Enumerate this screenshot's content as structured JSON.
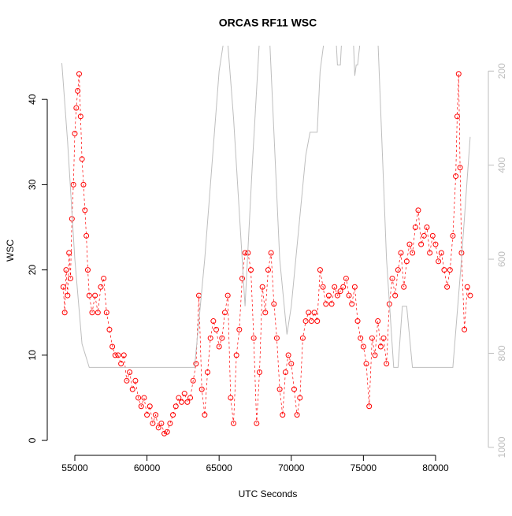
{
  "chart_data": {
    "type": "scatter",
    "title": "ORCAS RF11 WSC",
    "x_label": "UTC Seconds",
    "y_label": "WSC",
    "xlim": [
      53090,
      83660
    ],
    "xticks": [
      55000,
      60000,
      65000,
      70000,
      75000,
      80000
    ],
    "ylim": [
      -1.75,
      46.3
    ],
    "yticks": [
      0,
      10,
      20,
      30,
      40
    ],
    "y2lim": [
      1017,
      146
    ],
    "y2ticks": [
      200,
      400,
      600,
      800,
      1000
    ],
    "series": [
      {
        "color": "#ff0000",
        "x": [
          54200,
          54300,
          54400,
          54500,
          54600,
          54700,
          54800,
          54900,
          55000,
          55100,
          55200,
          55300,
          55400,
          55500,
          55600,
          55700,
          55800,
          55900,
          56000,
          56200,
          56400,
          56600,
          56800,
          57000,
          57200,
          57400,
          57600,
          57800,
          58000,
          58200,
          58400,
          58600,
          58800,
          59000,
          59200,
          59400,
          59600,
          59800,
          60000,
          60200,
          60400,
          60600,
          60800,
          61000,
          61200,
          61400,
          61600,
          61800,
          62000,
          62200,
          62400,
          62600,
          62800,
          63000,
          63200,
          63400,
          63600,
          63800,
          64000,
          64200,
          64400,
          64600,
          64800,
          65000,
          65200,
          65400,
          65600,
          65800,
          66000,
          66200,
          66400,
          66600,
          66800,
          67000,
          67200,
          67400,
          67600,
          67800,
          68000,
          68200,
          68400,
          68600,
          68800,
          69000,
          69200,
          69400,
          69600,
          69800,
          70000,
          70200,
          70400,
          70600,
          70800,
          71000,
          71200,
          71400,
          71600,
          71800,
          72000,
          72200,
          72400,
          72600,
          72800,
          73000,
          73200,
          73400,
          73600,
          73800,
          74000,
          74200,
          74400,
          74600,
          74800,
          75000,
          75200,
          75400,
          75600,
          75800,
          76000,
          76200,
          76400,
          76600,
          76800,
          77000,
          77200,
          77400,
          77600,
          77800,
          78000,
          78200,
          78400,
          78600,
          78800,
          79000,
          79200,
          79400,
          79600,
          79800,
          80000,
          80200,
          80400,
          80600,
          80800,
          81000,
          81200,
          81400,
          81500,
          81600,
          81700,
          81800,
          82000,
          82200,
          82400
        ],
        "values": [
          18,
          15,
          20,
          17,
          22,
          19,
          26,
          30,
          36,
          39,
          41,
          43,
          38,
          33,
          30,
          27,
          24,
          20,
          17,
          15,
          17,
          15,
          18,
          19,
          15,
          13,
          11,
          10,
          10,
          9,
          10,
          7,
          8,
          6,
          7,
          5,
          4,
          5,
          3,
          4,
          2,
          3,
          1.5,
          2,
          0.8,
          1,
          2,
          3,
          4,
          5,
          4.5,
          5.5,
          4.5,
          5,
          7,
          9,
          17,
          6,
          3,
          8,
          12,
          14,
          13,
          11,
          12,
          15,
          17,
          5,
          2,
          10,
          13,
          19,
          22,
          22,
          20,
          12,
          2,
          8,
          18,
          15,
          20,
          22,
          16,
          12,
          6,
          3,
          8,
          10,
          9,
          6,
          3,
          5,
          12,
          14,
          15,
          14,
          15,
          14,
          20,
          18,
          16,
          17,
          16,
          18,
          17,
          17.5,
          18,
          19,
          17,
          16,
          18,
          14,
          12,
          11,
          9,
          4,
          12,
          10,
          14,
          11,
          12,
          9,
          16,
          19,
          17,
          20,
          22,
          18,
          21,
          23,
          22,
          25,
          27,
          23,
          24,
          25,
          22,
          24,
          23,
          21,
          22,
          20,
          18,
          20,
          24,
          31,
          38,
          43,
          32,
          22,
          13,
          18,
          17
        ]
      },
      {
        "color": "#bebebe",
        "axis": "y2",
        "x": [
          54100,
          54500,
          55000,
          55500,
          56000,
          63300,
          64000,
          65000,
          65500,
          66000,
          66800,
          67300,
          67800,
          68500,
          69200,
          69700,
          70000,
          71000,
          71300,
          71800,
          72000,
          72300,
          73100,
          73200,
          73400,
          73500,
          74300,
          74400,
          74500,
          74600,
          74800,
          76000,
          76600,
          77100,
          77400,
          77700,
          78000,
          78400,
          81200,
          81800,
          82400
        ],
        "values": [
          183,
          350,
          600,
          780,
          830,
          830,
          600,
          200,
          100,
          300,
          700,
          400,
          130,
          130,
          600,
          760,
          700,
          380,
          330,
          330,
          200,
          130,
          130,
          187,
          187,
          130,
          130,
          210,
          187,
          187,
          130,
          130,
          600,
          830,
          830,
          700,
          700,
          830,
          830,
          600,
          340
        ]
      }
    ]
  }
}
